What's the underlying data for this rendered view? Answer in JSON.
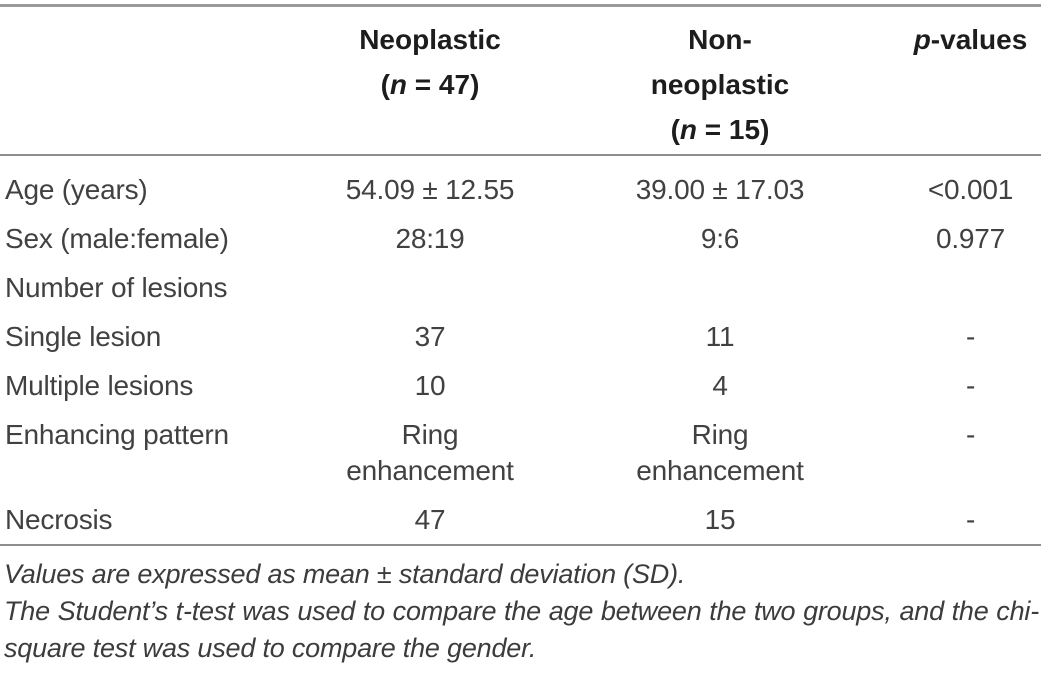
{
  "table": {
    "header": {
      "neoplastic": {
        "line1": "Neoplastic",
        "paren_open": "(",
        "n_italic": "n",
        "paren_rest": " = 47)"
      },
      "non_neoplastic": {
        "line1": "Non-",
        "line2": "neoplastic",
        "paren_open": "(",
        "n_italic": "n",
        "paren_rest": " = 15)"
      },
      "p_values": {
        "p_italic": "p",
        "rest": "-values"
      }
    },
    "rows": [
      {
        "label": "Age (years)",
        "neoplastic": "54.09 ± 12.55",
        "non_neoplastic": "39.00 ± 17.03",
        "p": "<0.001"
      },
      {
        "label": "Sex (male:female)",
        "neoplastic": "28:19",
        "non_neoplastic": "9:6",
        "p": "0.977"
      },
      {
        "label": "Number of lesions",
        "neoplastic": "",
        "non_neoplastic": "",
        "p": ""
      },
      {
        "label": "Single lesion",
        "neoplastic": "37",
        "non_neoplastic": "11",
        "p": "-"
      },
      {
        "label": "Multiple lesions",
        "neoplastic": "10",
        "non_neoplastic": "4",
        "p": "-"
      },
      {
        "label": "Enhancing pattern",
        "neoplastic": "Ring enhancement",
        "non_neoplastic": "Ring enhancement",
        "p": "-"
      },
      {
        "label": "Necrosis",
        "neoplastic": "47",
        "non_neoplastic": "15",
        "p": "-"
      }
    ],
    "rule_color": "#8e8e8e"
  },
  "footnotes": {
    "line1": "Values are expressed as mean ± standard deviation (SD).",
    "line2": "The Student’s t-test was used to compare the age between the two groups, and the chi-square test was used to compare the gender."
  }
}
